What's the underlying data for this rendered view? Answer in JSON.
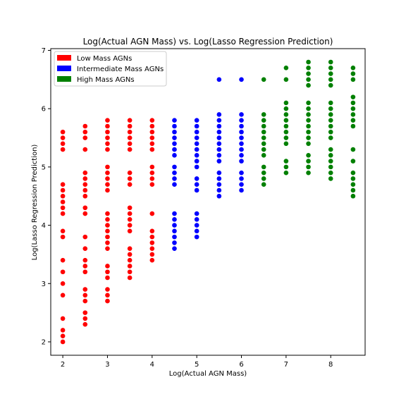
{
  "chart_data": {
    "type": "scatter",
    "title": "Log(Actual AGN Mass) vs. Log(Lasso Regression Prediction)",
    "xlabel": "Log(Actual AGN Mass)",
    "ylabel": "Log(Lasso Regression Prediction)",
    "xlim": [
      1.73,
      8.77
    ],
    "ylim": [
      1.77,
      7.03
    ],
    "xticks": [
      "2",
      "3",
      "4",
      "5",
      "6",
      "7",
      "8"
    ],
    "yticks": [
      "2",
      "3",
      "4",
      "5",
      "6",
      "7"
    ],
    "legend_position": "upper-left",
    "grid": false,
    "series": [
      {
        "name": "Low Mass AGNs",
        "color": "#ff0000",
        "points": [
          [
            2.0,
            5.6
          ],
          [
            2.0,
            5.5
          ],
          [
            2.0,
            5.4
          ],
          [
            2.0,
            5.3
          ],
          [
            2.0,
            4.7
          ],
          [
            2.0,
            4.6
          ],
          [
            2.0,
            4.5
          ],
          [
            2.0,
            4.4
          ],
          [
            2.0,
            4.3
          ],
          [
            2.0,
            4.2
          ],
          [
            2.0,
            3.9
          ],
          [
            2.0,
            3.8
          ],
          [
            2.0,
            3.4
          ],
          [
            2.0,
            3.2
          ],
          [
            2.0,
            3.0
          ],
          [
            2.0,
            2.8
          ],
          [
            2.0,
            2.4
          ],
          [
            2.0,
            2.2
          ],
          [
            2.0,
            2.1
          ],
          [
            2.0,
            2.0
          ],
          [
            2.5,
            5.7
          ],
          [
            2.5,
            5.6
          ],
          [
            2.5,
            5.5
          ],
          [
            2.5,
            5.3
          ],
          [
            2.5,
            4.9
          ],
          [
            2.5,
            4.8
          ],
          [
            2.5,
            4.7
          ],
          [
            2.5,
            4.6
          ],
          [
            2.5,
            4.5
          ],
          [
            2.5,
            4.3
          ],
          [
            2.5,
            4.2
          ],
          [
            2.5,
            3.8
          ],
          [
            2.5,
            3.6
          ],
          [
            2.5,
            3.4
          ],
          [
            2.5,
            3.3
          ],
          [
            2.5,
            3.2
          ],
          [
            2.5,
            2.9
          ],
          [
            2.5,
            2.8
          ],
          [
            2.5,
            2.7
          ],
          [
            2.5,
            2.5
          ],
          [
            2.5,
            2.4
          ],
          [
            2.5,
            2.3
          ],
          [
            3.0,
            5.8
          ],
          [
            3.0,
            5.7
          ],
          [
            3.0,
            5.6
          ],
          [
            3.0,
            5.5
          ],
          [
            3.0,
            5.4
          ],
          [
            3.0,
            5.3
          ],
          [
            3.0,
            5.0
          ],
          [
            3.0,
            4.9
          ],
          [
            3.0,
            4.8
          ],
          [
            3.0,
            4.7
          ],
          [
            3.0,
            4.6
          ],
          [
            3.0,
            4.2
          ],
          [
            3.0,
            4.1
          ],
          [
            3.0,
            4.0
          ],
          [
            3.0,
            3.9
          ],
          [
            3.0,
            3.8
          ],
          [
            3.0,
            3.7
          ],
          [
            3.0,
            3.6
          ],
          [
            3.0,
            3.3
          ],
          [
            3.0,
            3.2
          ],
          [
            3.0,
            3.1
          ],
          [
            3.0,
            2.9
          ],
          [
            3.0,
            2.8
          ],
          [
            3.0,
            2.7
          ],
          [
            3.5,
            5.8
          ],
          [
            3.5,
            5.7
          ],
          [
            3.5,
            5.6
          ],
          [
            3.5,
            5.5
          ],
          [
            3.5,
            5.4
          ],
          [
            3.5,
            5.3
          ],
          [
            3.5,
            4.9
          ],
          [
            3.5,
            4.8
          ],
          [
            3.5,
            4.7
          ],
          [
            3.5,
            4.3
          ],
          [
            3.5,
            4.2
          ],
          [
            3.5,
            4.1
          ],
          [
            3.5,
            4.0
          ],
          [
            3.5,
            3.9
          ],
          [
            3.5,
            3.6
          ],
          [
            3.5,
            3.5
          ],
          [
            3.5,
            3.4
          ],
          [
            3.5,
            3.3
          ],
          [
            3.5,
            3.2
          ],
          [
            3.5,
            3.1
          ],
          [
            4.0,
            5.8
          ],
          [
            4.0,
            5.7
          ],
          [
            4.0,
            5.6
          ],
          [
            4.0,
            5.5
          ],
          [
            4.0,
            5.4
          ],
          [
            4.0,
            5.3
          ],
          [
            4.0,
            5.0
          ],
          [
            4.0,
            4.9
          ],
          [
            4.0,
            4.8
          ],
          [
            4.0,
            4.7
          ],
          [
            4.0,
            4.2
          ],
          [
            4.0,
            3.9
          ],
          [
            4.0,
            3.8
          ],
          [
            4.0,
            3.7
          ],
          [
            4.0,
            3.6
          ],
          [
            4.0,
            3.5
          ],
          [
            4.0,
            3.4
          ]
        ]
      },
      {
        "name": "Intermediate Mass AGNs",
        "color": "#0000ff",
        "points": [
          [
            4.5,
            5.8
          ],
          [
            4.5,
            5.7
          ],
          [
            4.5,
            5.6
          ],
          [
            4.5,
            5.5
          ],
          [
            4.5,
            5.4
          ],
          [
            4.5,
            5.3
          ],
          [
            4.5,
            5.2
          ],
          [
            4.5,
            5.0
          ],
          [
            4.5,
            4.9
          ],
          [
            4.5,
            4.8
          ],
          [
            4.5,
            4.7
          ],
          [
            4.5,
            4.2
          ],
          [
            4.5,
            4.1
          ],
          [
            4.5,
            4.0
          ],
          [
            4.5,
            3.9
          ],
          [
            4.5,
            3.8
          ],
          [
            4.5,
            3.7
          ],
          [
            4.5,
            3.6
          ],
          [
            5.0,
            5.8
          ],
          [
            5.0,
            5.7
          ],
          [
            5.0,
            5.6
          ],
          [
            5.0,
            5.5
          ],
          [
            5.0,
            5.4
          ],
          [
            5.0,
            5.3
          ],
          [
            5.0,
            5.2
          ],
          [
            5.0,
            5.1
          ],
          [
            5.0,
            5.0
          ],
          [
            5.0,
            4.8
          ],
          [
            5.0,
            4.7
          ],
          [
            5.0,
            4.6
          ],
          [
            5.0,
            4.2
          ],
          [
            5.0,
            4.1
          ],
          [
            5.0,
            4.0
          ],
          [
            5.0,
            3.9
          ],
          [
            5.0,
            3.8
          ],
          [
            5.5,
            6.5
          ],
          [
            5.5,
            5.9
          ],
          [
            5.5,
            5.8
          ],
          [
            5.5,
            5.7
          ],
          [
            5.5,
            5.6
          ],
          [
            5.5,
            5.5
          ],
          [
            5.5,
            5.4
          ],
          [
            5.5,
            5.3
          ],
          [
            5.5,
            5.2
          ],
          [
            5.5,
            5.1
          ],
          [
            5.5,
            4.9
          ],
          [
            5.5,
            4.8
          ],
          [
            5.5,
            4.7
          ],
          [
            5.5,
            4.6
          ],
          [
            5.5,
            4.5
          ],
          [
            6.0,
            6.5
          ],
          [
            6.0,
            5.9
          ],
          [
            6.0,
            5.8
          ],
          [
            6.0,
            5.7
          ],
          [
            6.0,
            5.6
          ],
          [
            6.0,
            5.5
          ],
          [
            6.0,
            5.4
          ],
          [
            6.0,
            5.3
          ],
          [
            6.0,
            5.2
          ],
          [
            6.0,
            5.1
          ],
          [
            6.0,
            4.9
          ],
          [
            6.0,
            4.8
          ],
          [
            6.0,
            4.7
          ],
          [
            6.0,
            4.6
          ]
        ]
      },
      {
        "name": "High Mass AGNs",
        "color": "#008000",
        "points": [
          [
            6.5,
            6.5
          ],
          [
            6.5,
            5.9
          ],
          [
            6.5,
            5.8
          ],
          [
            6.5,
            5.7
          ],
          [
            6.5,
            5.6
          ],
          [
            6.5,
            5.5
          ],
          [
            6.5,
            5.4
          ],
          [
            6.5,
            5.3
          ],
          [
            6.5,
            5.2
          ],
          [
            6.5,
            5.0
          ],
          [
            6.5,
            4.9
          ],
          [
            6.5,
            4.8
          ],
          [
            6.5,
            4.7
          ],
          [
            7.0,
            6.7
          ],
          [
            7.0,
            6.5
          ],
          [
            7.0,
            6.1
          ],
          [
            7.0,
            6.0
          ],
          [
            7.0,
            5.9
          ],
          [
            7.0,
            5.8
          ],
          [
            7.0,
            5.7
          ],
          [
            7.0,
            5.6
          ],
          [
            7.0,
            5.5
          ],
          [
            7.0,
            5.4
          ],
          [
            7.0,
            5.1
          ],
          [
            7.0,
            5.0
          ],
          [
            7.0,
            4.9
          ],
          [
            7.5,
            6.8
          ],
          [
            7.5,
            6.7
          ],
          [
            7.5,
            6.6
          ],
          [
            7.5,
            6.5
          ],
          [
            7.5,
            6.4
          ],
          [
            7.5,
            6.1
          ],
          [
            7.5,
            6.0
          ],
          [
            7.5,
            5.9
          ],
          [
            7.5,
            5.8
          ],
          [
            7.5,
            5.7
          ],
          [
            7.5,
            5.6
          ],
          [
            7.5,
            5.5
          ],
          [
            7.5,
            5.4
          ],
          [
            7.5,
            5.2
          ],
          [
            7.5,
            5.1
          ],
          [
            7.5,
            5.0
          ],
          [
            7.5,
            4.9
          ],
          [
            8.0,
            6.8
          ],
          [
            8.0,
            6.7
          ],
          [
            8.0,
            6.6
          ],
          [
            8.0,
            6.5
          ],
          [
            8.0,
            6.4
          ],
          [
            8.0,
            6.1
          ],
          [
            8.0,
            6.0
          ],
          [
            8.0,
            5.9
          ],
          [
            8.0,
            5.8
          ],
          [
            8.0,
            5.7
          ],
          [
            8.0,
            5.6
          ],
          [
            8.0,
            5.5
          ],
          [
            8.0,
            5.3
          ],
          [
            8.0,
            5.2
          ],
          [
            8.0,
            5.1
          ],
          [
            8.0,
            5.0
          ],
          [
            8.0,
            4.9
          ],
          [
            8.0,
            4.8
          ],
          [
            8.5,
            6.7
          ],
          [
            8.5,
            6.6
          ],
          [
            8.5,
            6.5
          ],
          [
            8.5,
            6.2
          ],
          [
            8.5,
            6.1
          ],
          [
            8.5,
            6.0
          ],
          [
            8.5,
            5.9
          ],
          [
            8.5,
            5.8
          ],
          [
            8.5,
            5.7
          ],
          [
            8.5,
            5.3
          ],
          [
            8.5,
            5.1
          ],
          [
            8.5,
            4.9
          ],
          [
            8.5,
            4.8
          ],
          [
            8.5,
            4.7
          ],
          [
            8.5,
            4.6
          ],
          [
            8.5,
            4.5
          ]
        ]
      }
    ]
  }
}
